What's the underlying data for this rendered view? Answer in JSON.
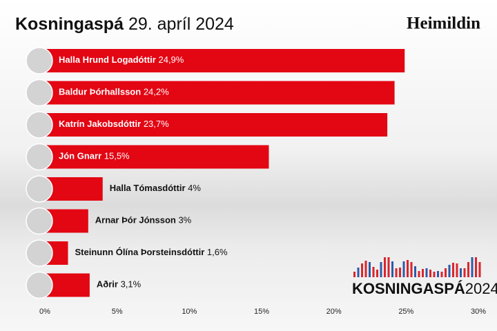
{
  "chart_data": {
    "type": "bar",
    "orientation": "horizontal",
    "title": "Kosningaspá",
    "subtitle": "29. apríl 2024",
    "brand": "Heimildin",
    "logo": {
      "bold": "KOSNINGASPÁ",
      "light": "2024"
    },
    "categories": [
      "Halla Hrund Logadóttir",
      "Baldur Þórhallsson",
      "Katrín Jakobsdóttir",
      "Jón Gnarr",
      "Halla Tómasdóttir",
      "Arnar Þór Jónsson",
      "Steinunn Ólína Þorsteinsdóttir",
      "Aðrir"
    ],
    "values": [
      24.9,
      24.2,
      23.7,
      15.5,
      4,
      3,
      1.6,
      3.1
    ],
    "value_labels": [
      "24,9%",
      "24,2%",
      "23,7%",
      "15,5%",
      "4%",
      "3%",
      "1,6%",
      "3,1%"
    ],
    "color": "#e30613",
    "xlim": [
      0,
      30
    ],
    "xticks": [
      {
        "value": 0,
        "label": "0%"
      },
      {
        "value": 5,
        "label": "5%"
      },
      {
        "value": 10,
        "label": "10%"
      },
      {
        "value": 15,
        "label": "15%"
      },
      {
        "value": 20,
        "label": "20%"
      },
      {
        "value": 25,
        "label": "25%"
      },
      {
        "value": 30,
        "label": "30%"
      }
    ]
  }
}
